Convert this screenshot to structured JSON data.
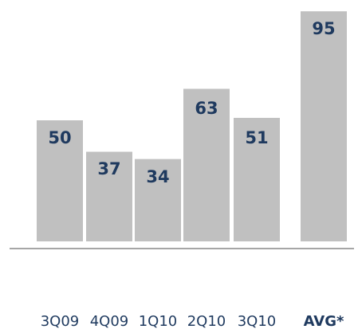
{
  "chart_data": {
    "type": "bar",
    "categories": [
      "3Q09",
      "4Q09",
      "1Q10",
      "2Q10",
      "3Q10",
      "AVG*"
    ],
    "values": [
      50,
      37,
      34,
      63,
      51,
      95
    ],
    "ylim": [
      0,
      100
    ],
    "grid": false,
    "colors": {
      "bar": "#c0c0c0",
      "label": "#1f3a5f",
      "baseline": "#a6a6a6"
    }
  }
}
